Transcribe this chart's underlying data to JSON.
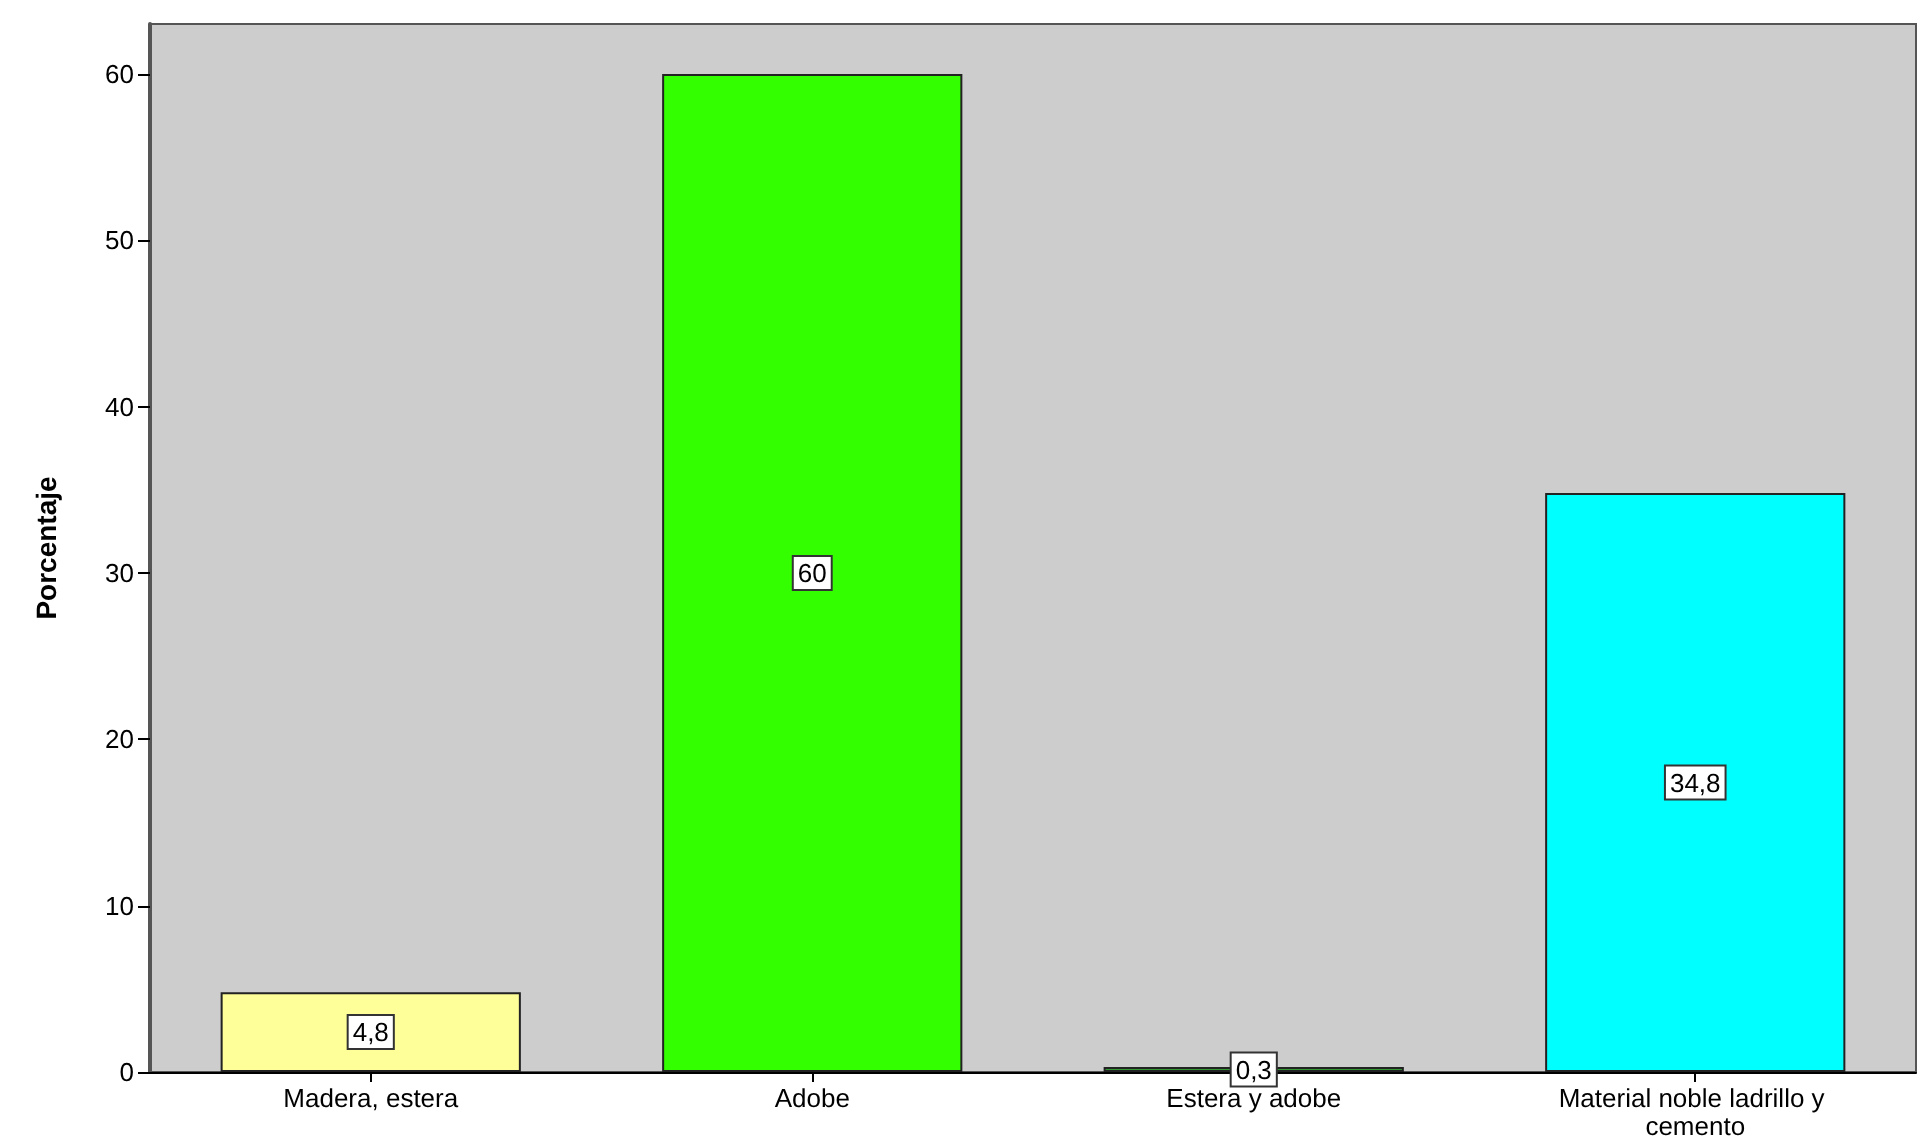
{
  "chart_data": {
    "type": "bar",
    "ylabel": "Porcentaje",
    "categories": [
      "Madera, estera",
      "Adobe",
      "Estera y adobe",
      "Material noble ladrillo y cemento"
    ],
    "values": [
      4.8,
      60,
      0.3,
      34.8
    ],
    "colors": [
      "#ffff99",
      "#33ff00",
      "#339933",
      "#00ffff"
    ],
    "value_labels": [
      "4,8",
      "60",
      "0,3",
      "34,8"
    ],
    "ylim": [
      0,
      63
    ],
    "yticks": [
      0,
      10,
      20,
      30,
      40,
      50,
      60
    ]
  }
}
